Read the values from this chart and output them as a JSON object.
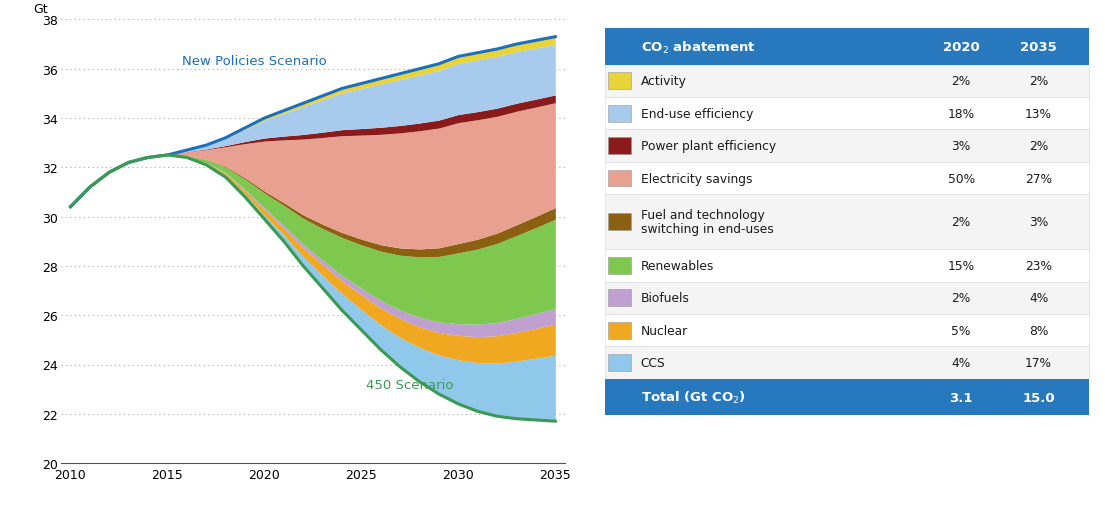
{
  "years": [
    2010,
    2011,
    2012,
    2013,
    2014,
    2015,
    2016,
    2017,
    2018,
    2019,
    2020,
    2021,
    2022,
    2023,
    2024,
    2025,
    2026,
    2027,
    2028,
    2029,
    2030,
    2031,
    2032,
    2033,
    2034,
    2035
  ],
  "new_policies": [
    30.4,
    31.2,
    31.8,
    32.2,
    32.4,
    32.5,
    32.7,
    32.9,
    33.2,
    33.6,
    34.0,
    34.3,
    34.6,
    34.9,
    35.2,
    35.4,
    35.6,
    35.8,
    36.0,
    36.2,
    36.5,
    36.65,
    36.8,
    37.0,
    37.15,
    37.3
  ],
  "scenario_450": [
    30.4,
    31.2,
    31.8,
    32.2,
    32.4,
    32.5,
    32.4,
    32.1,
    31.6,
    30.8,
    29.9,
    29.0,
    28.0,
    27.1,
    26.2,
    25.4,
    24.6,
    23.9,
    23.3,
    22.8,
    22.4,
    22.1,
    21.9,
    21.8,
    21.75,
    21.7
  ],
  "new_policies_color": "#1B6FBF",
  "scenario_450_color": "#3A9A50",
  "ylabel": "Gt",
  "ylim": [
    20,
    38
  ],
  "yticks": [
    20,
    22,
    24,
    26,
    28,
    30,
    32,
    34,
    36,
    38
  ],
  "xticks": [
    2010,
    2015,
    2020,
    2025,
    2030,
    2035
  ],
  "stack_order": [
    "ccs",
    "nuclear",
    "biofuels",
    "renewables",
    "fuel_technology",
    "electricity_savings",
    "power_plant_efficiency",
    "end_use_efficiency",
    "activity"
  ],
  "layers": {
    "activity": {
      "color": "#E8D33A",
      "pct_2020": 2,
      "pct_2035": 2
    },
    "end_use_efficiency": {
      "color": "#A8CAEC",
      "pct_2020": 18,
      "pct_2035": 13
    },
    "power_plant_efficiency": {
      "color": "#8B1A1A",
      "pct_2020": 3,
      "pct_2035": 2
    },
    "electricity_savings": {
      "color": "#E8A090",
      "pct_2020": 50,
      "pct_2035": 27
    },
    "fuel_technology": {
      "color": "#8B6010",
      "pct_2020": 2,
      "pct_2035": 3
    },
    "renewables": {
      "color": "#7EC850",
      "pct_2020": 15,
      "pct_2035": 23
    },
    "biofuels": {
      "color": "#C0A0D0",
      "pct_2020": 2,
      "pct_2035": 4
    },
    "nuclear": {
      "color": "#F0A820",
      "pct_2020": 5,
      "pct_2035": 8
    },
    "ccs": {
      "color": "#90C8EC",
      "pct_2020": 4,
      "pct_2035": 17
    }
  },
  "table_header_color": "#2878BE",
  "table_rows": [
    {
      "label": "Activity",
      "label2": "",
      "color": "#E8D33A",
      "v2020": "2%",
      "v2035": "2%"
    },
    {
      "label": "End-use efficiency",
      "label2": "",
      "color": "#A8CAEC",
      "v2020": "18%",
      "v2035": "13%"
    },
    {
      "label": "Power plant efficiency",
      "label2": "",
      "color": "#8B1A1A",
      "v2020": "3%",
      "v2035": "2%"
    },
    {
      "label": "Electricity savings",
      "label2": "",
      "color": "#E8A090",
      "v2020": "50%",
      "v2035": "27%"
    },
    {
      "label": "Fuel and technology",
      "label2": "switching in end-uses",
      "color": "#8B6010",
      "v2020": "2%",
      "v2035": "3%"
    },
    {
      "label": "Renewables",
      "label2": "",
      "color": "#7EC850",
      "v2020": "15%",
      "v2035": "23%"
    },
    {
      "label": "Biofuels",
      "label2": "",
      "color": "#C0A0D0",
      "v2020": "2%",
      "v2035": "4%"
    },
    {
      "label": "Nuclear",
      "label2": "",
      "color": "#F0A820",
      "v2020": "5%",
      "v2035": "8%"
    },
    {
      "label": "CCS",
      "label2": "",
      "color": "#90C8EC",
      "v2020": "4%",
      "v2035": "17%"
    }
  ]
}
